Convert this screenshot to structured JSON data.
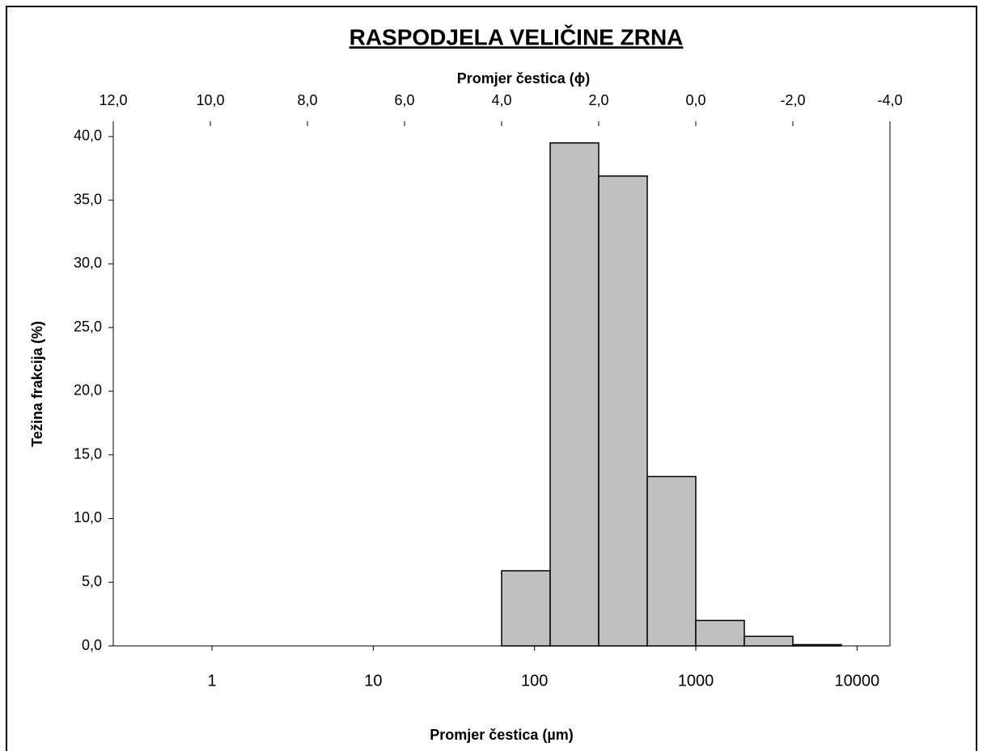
{
  "chart_data": {
    "type": "histogram",
    "title": "RASPODJELA VELIČINE ZRNA",
    "x_label": "Promjer čestica (µm)",
    "x2_label": "Promjer čestica (ϕ)",
    "y_label": "Težina frakcija (%)",
    "bins": [
      62.5,
      125,
      250,
      500,
      1000,
      2000,
      4000,
      8000
    ],
    "values": [
      5.9,
      39.5,
      36.9,
      13.3,
      2.0,
      0.75,
      0.1
    ],
    "color": "#c0c0c0",
    "xscale": "log",
    "xlim": [
      0.244140625,
      16000
    ],
    "xticks": [
      1,
      10,
      100,
      1000,
      10000
    ],
    "x2lim": [
      12,
      -4
    ],
    "x2ticks": [
      {
        "value": 12,
        "label": "12,0"
      },
      {
        "value": 10,
        "label": "10,0"
      },
      {
        "value": 8,
        "label": "8,0"
      },
      {
        "value": 6,
        "label": "6,0"
      },
      {
        "value": 4,
        "label": "4,0"
      },
      {
        "value": 2,
        "label": "2,0"
      },
      {
        "value": 0,
        "label": "0,0"
      },
      {
        "value": -2,
        "label": "-2,0"
      },
      {
        "value": -4,
        "label": "-4,0"
      }
    ],
    "ylim": [
      0,
      41.2
    ],
    "yticks": [
      {
        "value": 0,
        "label": "0,0"
      },
      {
        "value": 5,
        "label": "5,0"
      },
      {
        "value": 10,
        "label": "10,0"
      },
      {
        "value": 15,
        "label": "15,0"
      },
      {
        "value": 20,
        "label": "20,0"
      },
      {
        "value": 25,
        "label": "25,0"
      },
      {
        "value": 30,
        "label": "30,0"
      },
      {
        "value": 35,
        "label": "35,0"
      },
      {
        "value": 40,
        "label": "40,0"
      }
    ]
  }
}
